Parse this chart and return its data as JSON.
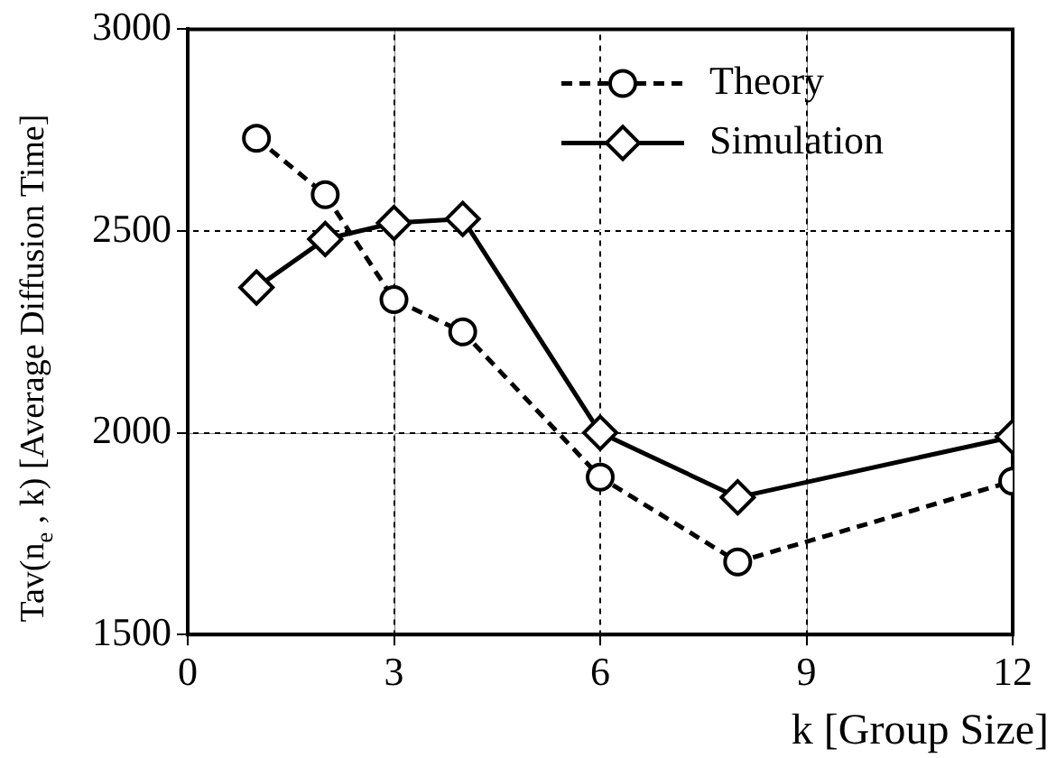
{
  "chart_data": {
    "type": "line",
    "xlabel": "k [Group Size]",
    "ylabel": "Tav(n$_{e}$ , k) [Average Diffusion Time]",
    "x": [
      1,
      2,
      3,
      4,
      6,
      8,
      12
    ],
    "series": [
      {
        "name": "Theory",
        "color": "#000000",
        "values": [
          2730,
          2590,
          2330,
          2250,
          1890,
          1680,
          1880
        ],
        "marker": "circle",
        "line_style": "dashed"
      },
      {
        "name": "Simulation",
        "color": "#000000",
        "values": [
          2360,
          2480,
          2520,
          2530,
          2000,
          1840,
          1990
        ],
        "marker": "diamond",
        "line_style": "solid"
      }
    ],
    "xlim": [
      0,
      12
    ],
    "xticks": [
      0,
      3,
      6,
      9,
      12
    ],
    "ylim": [
      1500,
      3000
    ],
    "yticks": [
      1500,
      2000,
      2500,
      3000
    ],
    "grid": true,
    "legend": "top right"
  }
}
